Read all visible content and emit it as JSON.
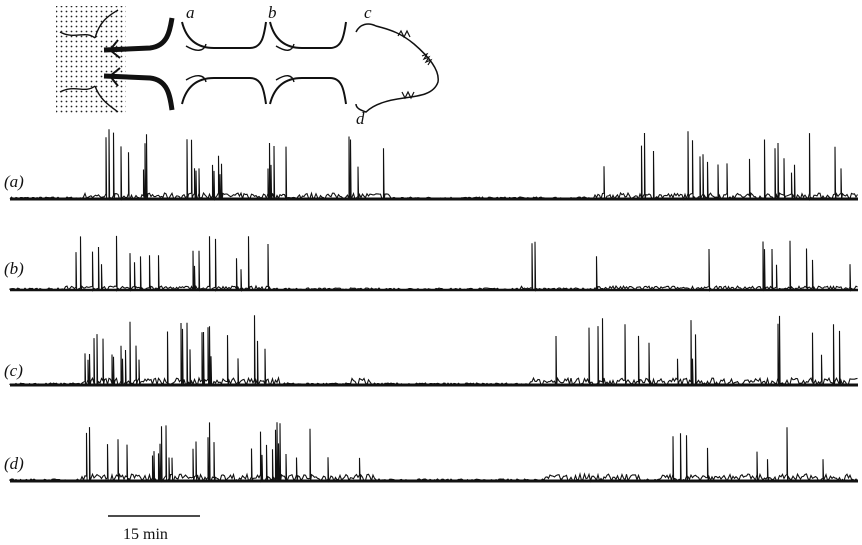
{
  "figure": {
    "schematic_labels": [
      "a",
      "b",
      "c",
      "d"
    ],
    "trace_labels": [
      "(a)",
      "(b)",
      "(c)",
      "(d)"
    ],
    "scale_bar_label": "15 min"
  }
}
